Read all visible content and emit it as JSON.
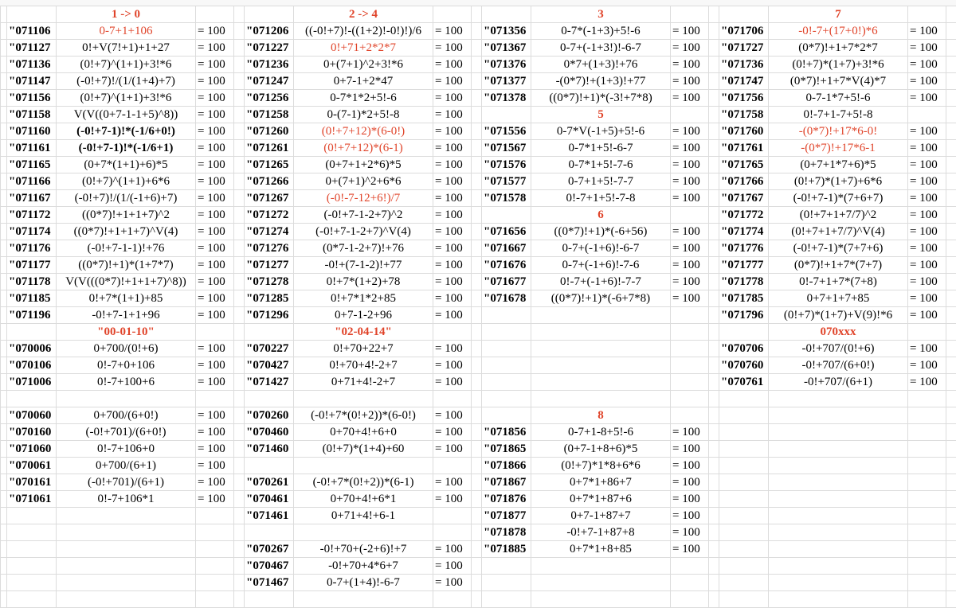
{
  "columns": [
    {
      "rows": [
        {
          "header": "1 -> 0"
        },
        {
          "code": "\"071106",
          "expr": "0-7+1+106",
          "eq": "= 100",
          "red": true
        },
        {
          "code": "\"071127",
          "expr": "0!+V(7!+1)+1+27",
          "eq": "= 100"
        },
        {
          "code": "\"071136",
          "expr": "(0!+7)^(1+1)+3!*6",
          "eq": "= 100"
        },
        {
          "code": "\"071147",
          "expr": "(-0!+7)!/(1/(1+4)+7)",
          "eq": "= 100"
        },
        {
          "code": "\"071156",
          "expr": "(0!+7)^(1+1)+3!*6",
          "eq": "= 100"
        },
        {
          "code": "\"071158",
          "expr": "V(V((0+7-1-1+5)^8))",
          "eq": "= 100"
        },
        {
          "code": "\"071160",
          "expr": "(-0!+7-1)!*(-1/6+0!)",
          "eq": "= 100",
          "bold": true
        },
        {
          "code": "\"071161",
          "expr": "(-0!+7-1)!*(-1/6+1)",
          "eq": "= 100",
          "bold": true
        },
        {
          "code": "\"071165",
          "expr": "(0+7*(1+1)+6)*5",
          "eq": "= 100"
        },
        {
          "code": "\"071166",
          "expr": "(0!+7)^(1+1)+6*6",
          "eq": "= 100"
        },
        {
          "code": "\"071167",
          "expr": "(-0!+7)!/(1/(-1+6)+7)",
          "eq": "= 100"
        },
        {
          "code": "\"071172",
          "expr": "((0*7)!+1+1+7)^2",
          "eq": "= 100"
        },
        {
          "code": "\"071174",
          "expr": "((0*7)!+1+1+7)^V(4)",
          "eq": "= 100"
        },
        {
          "code": "\"071176",
          "expr": "(-0!+7-1-1)!+76",
          "eq": "= 100"
        },
        {
          "code": "\"071177",
          "expr": "((0*7)!+1)*(1+7*7)",
          "eq": "= 100"
        },
        {
          "code": "\"071178",
          "expr": "V(V(((0*7)!+1+1+7)^8))",
          "eq": "= 100"
        },
        {
          "code": "\"071185",
          "expr": "0!+7*(1+1)+85",
          "eq": "= 100"
        },
        {
          "code": "\"071196",
          "expr": "-0!+7-1+1+96",
          "eq": "= 100"
        },
        {
          "header": "\"00-01-10\""
        },
        {
          "code": "\"070006",
          "expr": "0+700/(0!+6)",
          "eq": "= 100"
        },
        {
          "code": "\"070106",
          "expr": "0!-7+0+106",
          "eq": "= 100"
        },
        {
          "code": "\"071006",
          "expr": "0!-7+100+6",
          "eq": "= 100"
        },
        null,
        {
          "code": "\"070060",
          "expr": "0+700/(6+0!)",
          "eq": "= 100"
        },
        {
          "code": "\"070160",
          "expr": "(-0!+701)/(6+0!)",
          "eq": "= 100"
        },
        {
          "code": "\"071060",
          "expr": "0!-7+106+0",
          "eq": "= 100"
        },
        {
          "code": "\"070061",
          "expr": "0+700/(6+1)",
          "eq": "= 100"
        },
        {
          "code": "\"070161",
          "expr": "(-0!+701)/(6+1)",
          "eq": "= 100"
        },
        {
          "code": "\"071061",
          "expr": "0!-7+106*1",
          "eq": "= 100"
        }
      ]
    },
    {
      "rows": [
        {
          "header": "2 -> 4"
        },
        {
          "code": "\"071206",
          "expr": "((-0!+7)!-((1+2)!-0!)!)/6",
          "eq": "= 100"
        },
        {
          "code": "\"071227",
          "expr": "0!+71+2*2*7",
          "eq": "= 100",
          "red": true
        },
        {
          "code": "\"071236",
          "expr": "0+(7+1)^2+3!*6",
          "eq": "= 100"
        },
        {
          "code": "\"071247",
          "expr": "0+7-1+2*47",
          "eq": "= 100"
        },
        {
          "code": "\"071256",
          "expr": "0-7*1*2+5!-6",
          "eq": "= 100"
        },
        {
          "code": "\"071258",
          "expr": "0-(7-1)*2+5!-8",
          "eq": "= 100"
        },
        {
          "code": "\"071260",
          "expr": "(0!+7+12)*(6-0!)",
          "eq": "= 100",
          "red": true
        },
        {
          "code": "\"071261",
          "expr": "(0!+7+12)*(6-1)",
          "eq": "= 100",
          "red": true
        },
        {
          "code": "\"071265",
          "expr": "(0+7+1+2*6)*5",
          "eq": "= 100"
        },
        {
          "code": "\"071266",
          "expr": "0+(7+1)^2+6*6",
          "eq": "= 100"
        },
        {
          "code": "\"071267",
          "expr": "(-0!-7-12+6!)/7",
          "eq": "= 100",
          "red": true
        },
        {
          "code": "\"071272",
          "expr": "(-0!+7-1-2+7)^2",
          "eq": "= 100"
        },
        {
          "code": "\"071274",
          "expr": "(-0!+7-1-2+7)^V(4)",
          "eq": "= 100"
        },
        {
          "code": "\"071276",
          "expr": "(0*7-1-2+7)!+76",
          "eq": "= 100"
        },
        {
          "code": "\"071277",
          "expr": "-0!+(7-1-2)!+77",
          "eq": "= 100"
        },
        {
          "code": "\"071278",
          "expr": "0!+7*(1+2)+78",
          "eq": "= 100"
        },
        {
          "code": "\"071285",
          "expr": "0!+7*1*2+85",
          "eq": "= 100"
        },
        {
          "code": "\"071296",
          "expr": "0+7-1-2+96",
          "eq": "= 100"
        },
        {
          "header": "\"02-04-14\""
        },
        {
          "code": "\"070227",
          "expr": "0!+70+22+7",
          "eq": "= 100"
        },
        {
          "code": "\"070427",
          "expr": "0!+70+4!-2+7",
          "eq": "= 100"
        },
        {
          "code": "\"071427",
          "expr": "0+71+4!-2+7",
          "eq": "= 100"
        },
        null,
        {
          "code": "\"070260",
          "expr": "(-0!+7*(0!+2))*(6-0!)",
          "eq": "= 100"
        },
        {
          "code": "\"070460",
          "expr": "0+70+4!+6+0",
          "eq": "= 100"
        },
        {
          "code": "\"071460",
          "expr": "(0!+7)*(1+4)+60",
          "eq": "= 100"
        },
        null,
        {
          "code": "\"070261",
          "expr": "(-0!+7*(0!+2))*(6-1)",
          "eq": "= 100"
        },
        {
          "code": "\"070461",
          "expr": "0+70+4!+6*1",
          "eq": "= 100"
        },
        {
          "code": "\"071461",
          "expr": "0+71+4!+6-1"
        },
        null,
        {
          "code": "\"070267",
          "expr": "-0!+70+(-2+6)!+7",
          "eq": "= 100"
        },
        {
          "code": "\"070467",
          "expr": "-0!+70+4*6+7",
          "eq": "= 100"
        },
        {
          "code": "\"071467",
          "expr": "0-7+(1+4)!-6-7",
          "eq": "= 100"
        }
      ]
    },
    {
      "rows": [
        {
          "header": "3"
        },
        {
          "code": "\"071356",
          "expr": "0-7*(-1+3)+5!-6",
          "eq": "= 100"
        },
        {
          "code": "\"071367",
          "expr": "0-7+(-1+3!)!-6-7",
          "eq": "= 100"
        },
        {
          "code": "\"071376",
          "expr": "0*7+(1+3)!+76",
          "eq": "= 100"
        },
        {
          "code": "\"071377",
          "expr": "-(0*7)!+(1+3)!+77",
          "eq": "= 100"
        },
        {
          "code": "\"071378",
          "expr": "((0*7)!+1)*(-3!+7*8)",
          "eq": "= 100"
        },
        {
          "header": "5"
        },
        {
          "code": "\"071556",
          "expr": "0-7*V(-1+5)+5!-6",
          "eq": "= 100"
        },
        {
          "code": "\"071567",
          "expr": "0-7*1+5!-6-7",
          "eq": "= 100"
        },
        {
          "code": "\"071576",
          "expr": "0-7*1+5!-7-6",
          "eq": "= 100"
        },
        {
          "code": "\"071577",
          "expr": "0-7+1+5!-7-7",
          "eq": "= 100"
        },
        {
          "code": "\"071578",
          "expr": "0!-7+1+5!-7-8",
          "eq": "= 100"
        },
        {
          "header": "6"
        },
        {
          "code": "\"071656",
          "expr": "((0*7)!+1)*(-6+56)",
          "eq": "= 100"
        },
        {
          "code": "\"071667",
          "expr": "0-7+(-1+6)!-6-7",
          "eq": "= 100"
        },
        {
          "code": "\"071676",
          "expr": "0-7+(-1+6)!-7-6",
          "eq": "= 100"
        },
        {
          "code": "\"071677",
          "expr": "0!-7+(-1+6)!-7-7",
          "eq": "= 100"
        },
        {
          "code": "\"071678",
          "expr": "((0*7)!+1)*(-6+7*8)",
          "eq": "= 100"
        },
        null,
        null,
        null,
        null,
        null,
        null,
        {
          "header": "8"
        },
        {
          "code": "\"071856",
          "expr": "0-7+1-8+5!-6",
          "eq": "= 100"
        },
        {
          "code": "\"071865",
          "expr": "(0+7-1+8+6)*5",
          "eq": "= 100"
        },
        {
          "code": "\"071866",
          "expr": "(0!+7)*1*8+6*6",
          "eq": "= 100"
        },
        {
          "code": "\"071867",
          "expr": "0+7*1+86+7",
          "eq": "= 100"
        },
        {
          "code": "\"071876",
          "expr": "0+7*1+87+6",
          "eq": "= 100"
        },
        {
          "code": "\"071877",
          "expr": "0+7-1+87+7",
          "eq": "= 100"
        },
        {
          "code": "\"071878",
          "expr": "-0!+7-1+87+8",
          "eq": "= 100"
        },
        {
          "code": "\"071885",
          "expr": "0+7*1+8+85",
          "eq": "= 100"
        }
      ]
    },
    {
      "rows": [
        {
          "header": "7"
        },
        {
          "code": "\"071706",
          "expr": "-0!-7+(17+0!)*6",
          "eq": "= 100",
          "red": true
        },
        {
          "code": "\"071727",
          "expr": "(0*7)!+1+7*2*7",
          "eq": "= 100"
        },
        {
          "code": "\"071736",
          "expr": "(0!+7)*(1+7)+3!*6",
          "eq": "= 100"
        },
        {
          "code": "\"071747",
          "expr": "(0*7)!+1+7*V(4)*7",
          "eq": "= 100"
        },
        {
          "code": "\"071756",
          "expr": "0-7-1*7+5!-6",
          "eq": "= 100"
        },
        {
          "code": "\"071758",
          "expr": "0!-7+1-7+5!-8"
        },
        {
          "code": "\"071760",
          "expr": "-(0*7)!+17*6-0!",
          "eq": "= 100",
          "red": true
        },
        {
          "code": "\"071761",
          "expr": "-(0*7)!+17*6-1",
          "eq": "= 100",
          "red": true
        },
        {
          "code": "\"071765",
          "expr": "(0+7+1*7+6)*5",
          "eq": "= 100"
        },
        {
          "code": "\"071766",
          "expr": "(0!+7)*(1+7)+6*6",
          "eq": "= 100"
        },
        {
          "code": "\"071767",
          "expr": "(-0!+7-1)*(7+6+7)",
          "eq": "= 100"
        },
        {
          "code": "\"071772",
          "expr": "(0!+7+1+7/7)^2",
          "eq": "= 100"
        },
        {
          "code": "\"071774",
          "expr": "(0!+7+1+7/7)^V(4)",
          "eq": "= 100"
        },
        {
          "code": "\"071776",
          "expr": "(-0!+7-1)*(7+7+6)",
          "eq": "= 100"
        },
        {
          "code": "\"071777",
          "expr": "(0*7)!+1+7*(7+7)",
          "eq": "= 100"
        },
        {
          "code": "\"071778",
          "expr": "0!-7+1+7*(7+8)",
          "eq": "= 100"
        },
        {
          "code": "\"071785",
          "expr": "0+7+1+7+85",
          "eq": "= 100"
        },
        {
          "code": "\"071796",
          "expr": "(0!+7)*(1+7)+V(9)!*6",
          "eq": "= 100"
        },
        {
          "header": "070xxx"
        },
        {
          "code": "\"070706",
          "expr": "-0!+707/(0!+6)",
          "eq": "= 100"
        },
        {
          "code": "\"070760",
          "expr": "-0!+707/(6+0!)",
          "eq": "= 100"
        },
        {
          "code": "\"070761",
          "expr": "-0!+707/(6+1)",
          "eq": "= 100"
        }
      ]
    }
  ]
}
